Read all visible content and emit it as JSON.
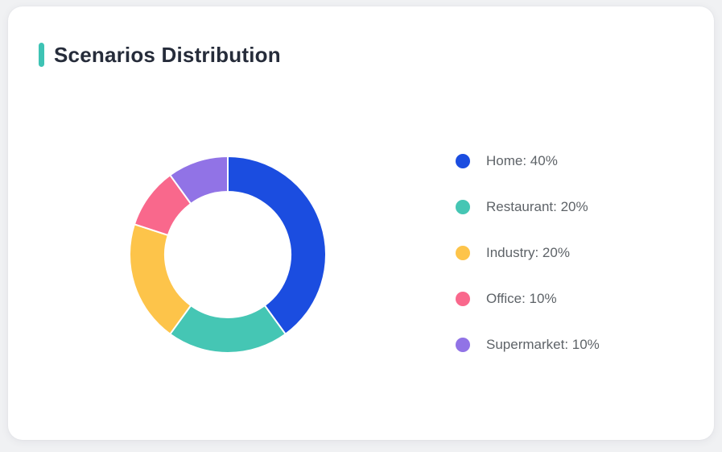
{
  "page": {
    "background": "#f0f1f3"
  },
  "card": {
    "background": "#ffffff"
  },
  "header": {
    "title": "Scenarios Distribution",
    "accent_color": "#3ec3b4",
    "title_color": "#262c3a"
  },
  "legend_style": {
    "text_color": "#5e6368"
  },
  "chart_data": {
    "type": "pie",
    "subtype": "donut",
    "title": "Scenarios Distribution",
    "categories": [
      "Home",
      "Restaurant",
      "Industry",
      "Office",
      "Supermarket"
    ],
    "values": [
      40,
      20,
      20,
      10,
      10
    ],
    "unit": "%",
    "colors": [
      "#1b4de0",
      "#45c6b4",
      "#fdc44a",
      "#f9688c",
      "#9173e6"
    ],
    "legend_labels": [
      "Home: 40%",
      "Restaurant: 20%",
      "Industry: 20%",
      "Office: 10%",
      "Supermarket: 10%"
    ],
    "legend_position": "right",
    "start_angle_deg": 0,
    "direction": "clockwise",
    "outer_radius_px": 122,
    "inner_radius_px": 78,
    "segment_gap_color": "#ffffff"
  }
}
